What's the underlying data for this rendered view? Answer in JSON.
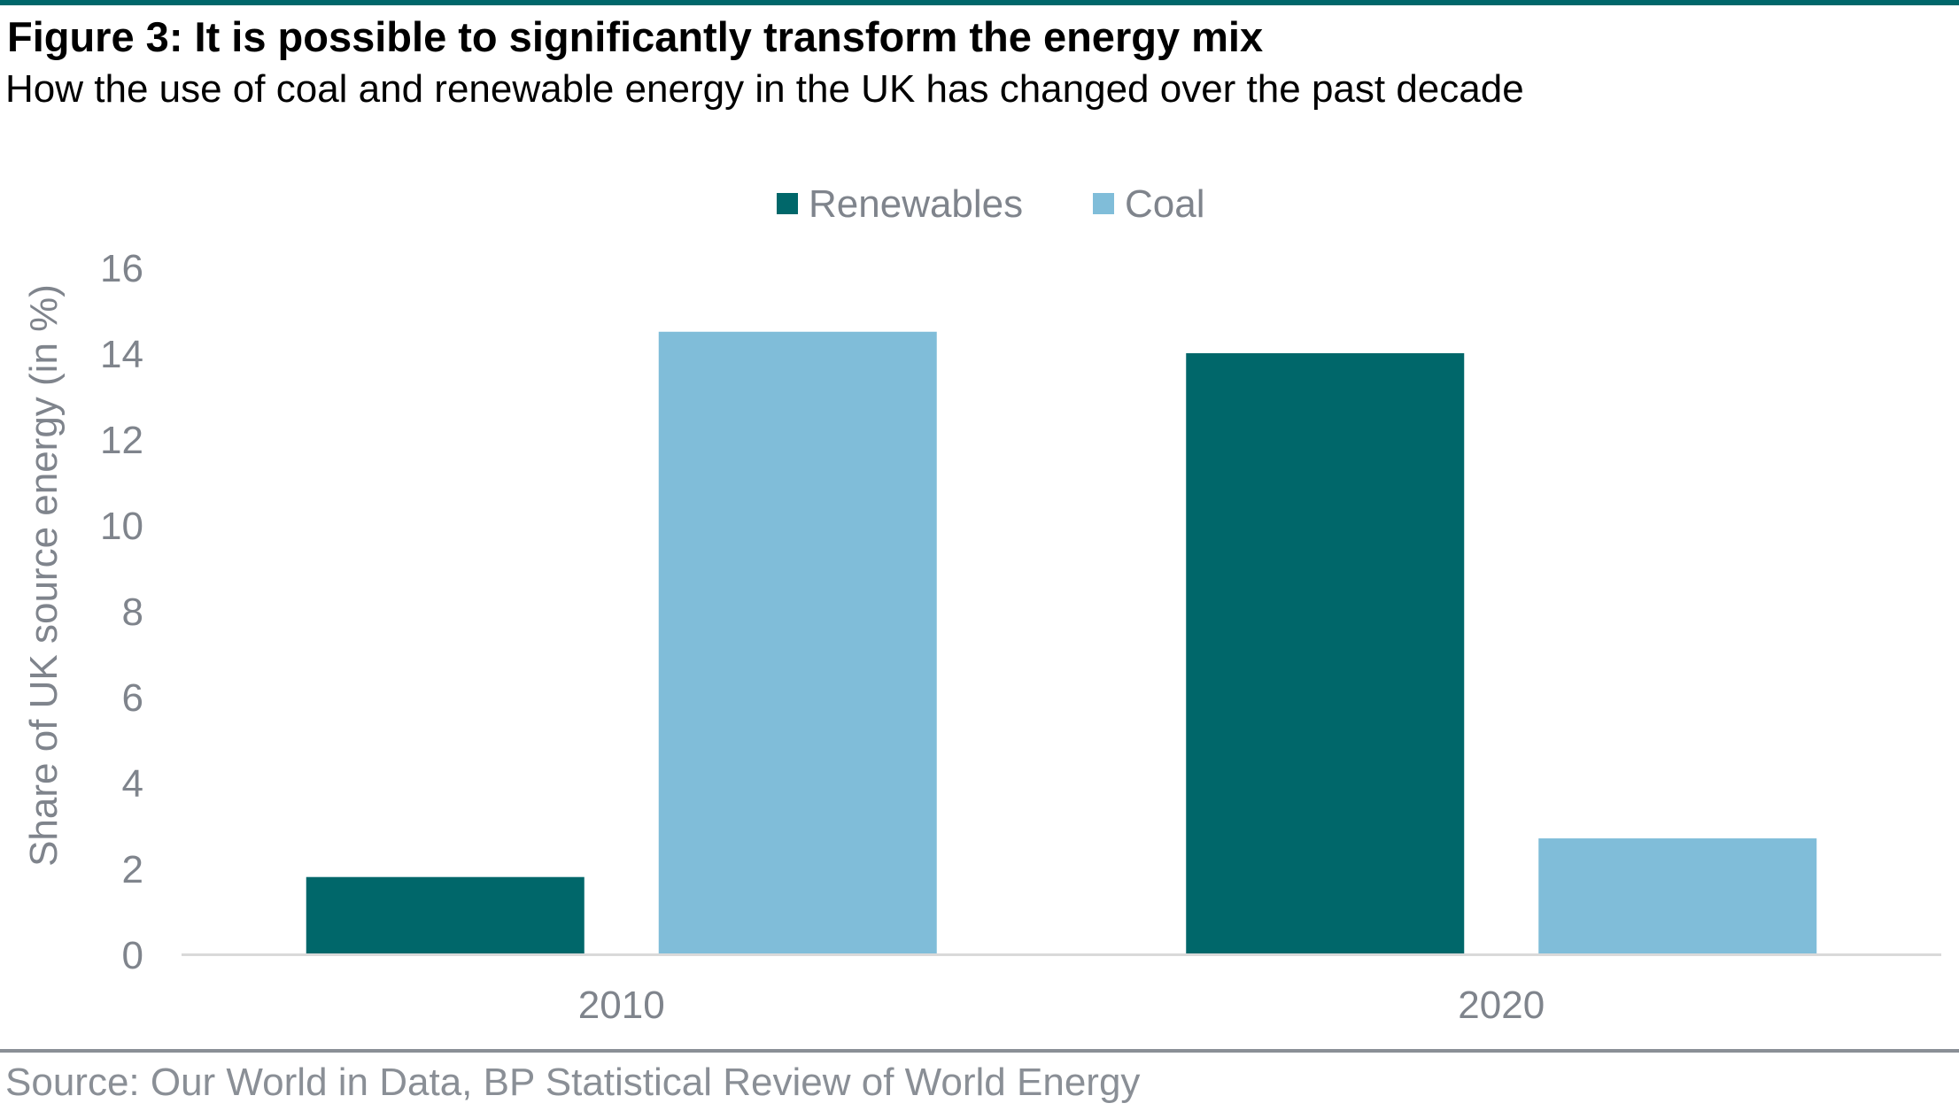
{
  "figure": {
    "title": "Figure 3: It is possible to significantly transform the energy mix",
    "subtitle": "How the use of coal and renewable energy in the UK has changed over the past decade",
    "source": "Source: Our World in Data, BP Statistical Review of World Energy"
  },
  "colors": {
    "renewables": "#00676a",
    "coal": "#80bdd9",
    "axis_text": "#7f848c",
    "axis_line": "#d9d9d9",
    "rule": "#00676a"
  },
  "chart_data": {
    "type": "bar",
    "categories": [
      "2010",
      "2020"
    ],
    "series": [
      {
        "name": "Renewables",
        "values": [
          1.8,
          14.0
        ]
      },
      {
        "name": "Coal",
        "values": [
          14.5,
          2.7
        ]
      }
    ],
    "xlabel": "",
    "ylabel": "Share of UK source energy (in %)",
    "ylim": [
      0,
      16
    ],
    "yticks": [
      "0",
      "2",
      "4",
      "6",
      "8",
      "10",
      "12",
      "14",
      "16"
    ],
    "grid": false,
    "legend": "top-center"
  }
}
